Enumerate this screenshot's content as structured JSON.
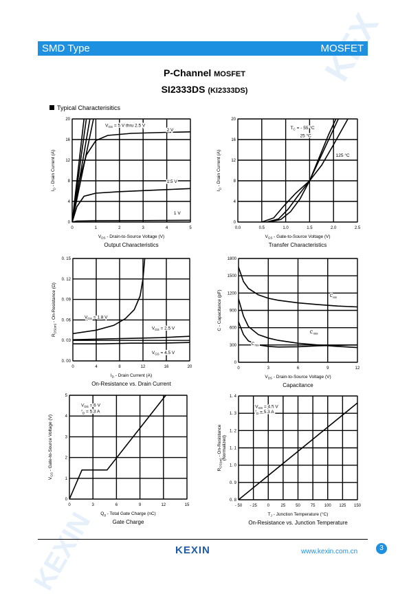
{
  "header": {
    "left": "SMD Type",
    "right": "MOSFET"
  },
  "title": {
    "main": "P-Channel",
    "main_suffix": "MOSFET",
    "part": "SI2333DS",
    "part_alt": "(KI2333DS)"
  },
  "section": "Typical  Characterisitics",
  "colors": {
    "accent": "#1e90e0"
  },
  "footer": {
    "logo": "KEXIN",
    "website": "www.kexin.com.cn",
    "page": "3"
  },
  "chart_data": [
    {
      "id": "c1",
      "type": "line",
      "caption": "Output Characteristics",
      "xlim": [
        0,
        5
      ],
      "ylim": [
        0,
        20
      ],
      "xticks": [
        0,
        1,
        2,
        3,
        4,
        5
      ],
      "yticks": [
        0,
        4,
        8,
        12,
        16,
        20
      ],
      "xticklabels": [
        "0",
        "1",
        "2",
        "3",
        "4",
        "5"
      ],
      "yticklabels": [
        "0",
        "4",
        "8",
        "12",
        "16",
        "20"
      ],
      "xlabel": {
        "sym": "V",
        "sub": "DS",
        "text": " - Drain-to-Source Voltage (V)"
      },
      "ylabel": {
        "sym": "I",
        "sub": "D",
        "text": " - Drain Current (A)"
      },
      "series": [
        {
          "name": "V_GS = 5 V thru 2.5 V",
          "points": [
            [
              0,
              0
            ],
            [
              0.5,
              20
            ]
          ]
        },
        {
          "name": "",
          "points": [
            [
              0,
              0
            ],
            [
              0.6,
              20
            ]
          ]
        },
        {
          "name": "",
          "points": [
            [
              0,
              0
            ],
            [
              0.75,
              20
            ]
          ]
        },
        {
          "name": "",
          "points": [
            [
              0,
              0
            ],
            [
              0.9,
              20
            ]
          ]
        },
        {
          "name": "2 V",
          "points": [
            [
              0,
              0
            ],
            [
              0.3,
              8
            ],
            [
              0.6,
              13
            ],
            [
              1,
              15.8
            ],
            [
              1.5,
              16.8
            ],
            [
              2.5,
              17.2
            ],
            [
              4,
              17.4
            ],
            [
              5,
              17.5
            ]
          ]
        },
        {
          "name": "1.5 V",
          "points": [
            [
              0,
              0
            ],
            [
              0.2,
              3
            ],
            [
              0.5,
              5
            ],
            [
              1,
              5.6
            ],
            [
              2,
              5.9
            ],
            [
              3,
              6.1
            ],
            [
              4,
              6.3
            ],
            [
              5,
              6.5
            ]
          ]
        },
        {
          "name": "1 V",
          "points": [
            [
              0,
              0
            ],
            [
              0.2,
              0.2
            ],
            [
              1,
              0.25
            ],
            [
              3,
              0.3
            ],
            [
              5,
              0.35
            ]
          ]
        }
      ],
      "annotations": [
        {
          "text": "V",
          "sub": "GS",
          "rest": " = 5 V thru 2.5 V",
          "x": 1.4,
          "y": 18.5
        },
        {
          "text": "2 V",
          "x": 4,
          "y": 17.6
        },
        {
          "text": "1.5 V",
          "x": 4,
          "y": 7.6
        },
        {
          "text": "1 V",
          "x": 4.3,
          "y": 1.5
        }
      ]
    },
    {
      "id": "c2",
      "type": "line",
      "caption": "Transfer Characteristics",
      "xlim": [
        0,
        2.5
      ],
      "ylim": [
        0,
        20
      ],
      "xticks": [
        0,
        0.5,
        1,
        1.5,
        2,
        2.5
      ],
      "yticks": [
        0,
        4,
        8,
        12,
        16,
        20
      ],
      "xticklabels": [
        "0.0",
        "0.5",
        "1.0",
        "1.5",
        "2.0",
        "2.5"
      ],
      "yticklabels": [
        "0",
        "4",
        "8",
        "12",
        "16",
        "20"
      ],
      "xlabel": {
        "sym": "V",
        "sub": "GS",
        "text": " - Gate-to-Source Voltage (V)"
      },
      "ylabel": {
        "sym": "I",
        "sub": "D",
        "text": " - Drain Current (A)"
      },
      "series": [
        {
          "name": "T_C = -55 °C",
          "points": [
            [
              0.65,
              0
            ],
            [
              0.9,
              0.5
            ],
            [
              1.1,
              2
            ],
            [
              1.3,
              4.5
            ],
            [
              1.5,
              8
            ],
            [
              1.7,
              12.5
            ],
            [
              1.9,
              17
            ],
            [
              2.05,
              20
            ]
          ]
        },
        {
          "name": "25 °C",
          "points": [
            [
              0.6,
              0
            ],
            [
              0.85,
              0.6
            ],
            [
              1.05,
              2.5
            ],
            [
              1.25,
              5
            ],
            [
              1.5,
              8
            ],
            [
              1.7,
              12
            ],
            [
              1.9,
              16
            ],
            [
              2.1,
              20
            ]
          ]
        },
        {
          "name": "125 °C",
          "points": [
            [
              0.5,
              0
            ],
            [
              0.75,
              0.8
            ],
            [
              0.95,
              3
            ],
            [
              1.2,
              5.5
            ],
            [
              1.5,
              8
            ],
            [
              1.75,
              11
            ],
            [
              2,
              15
            ],
            [
              2.3,
              20
            ]
          ]
        }
      ],
      "annotations": [
        {
          "text": "T",
          "sub": "C",
          "rest": " = - 55 °C",
          "x": 1.1,
          "y": 18
        },
        {
          "text": "25 °C",
          "x": 1.3,
          "y": 16.5
        },
        {
          "text": "125 °C",
          "x": 2.05,
          "y": 12.7
        }
      ]
    },
    {
      "id": "c3",
      "type": "line",
      "caption": "On-Resistance vs. Drain Current",
      "xlim": [
        0,
        20
      ],
      "ylim": [
        0,
        0.15
      ],
      "xticks": [
        0,
        4,
        8,
        12,
        16,
        20
      ],
      "yticks": [
        0,
        0.03,
        0.06,
        0.09,
        0.12,
        0.15
      ],
      "xticklabels": [
        "0",
        "4",
        "8",
        "12",
        "16",
        "20"
      ],
      "yticklabels": [
        "0. 00",
        "0. 03",
        "0. 06",
        "0. 09",
        "0. 12",
        "0. 15"
      ],
      "xlabel": {
        "sym": "I",
        "sub": "D",
        "text": " - Drain Current (A)"
      },
      "ylabel": {
        "sym": "R",
        "sub": "DS(on)",
        "text": " - On-Resistance (Ω)"
      },
      "series": [
        {
          "name": "V_GS = 1.8 V",
          "points": [
            [
              0,
              0.04
            ],
            [
              4,
              0.045
            ],
            [
              7,
              0.052
            ],
            [
              9,
              0.062
            ],
            [
              10.5,
              0.075
            ],
            [
              11.5,
              0.095
            ],
            [
              12,
              0.12
            ],
            [
              12.3,
              0.15
            ]
          ]
        },
        {
          "name": "V_GS = 2.5 V",
          "points": [
            [
              0,
              0.031
            ],
            [
              5,
              0.032
            ],
            [
              10,
              0.033
            ],
            [
              15,
              0.034
            ],
            [
              20,
              0.036
            ]
          ]
        },
        {
          "name": "V_GS = 4.5 V",
          "points": [
            [
              0,
              0.025
            ],
            [
              5,
              0.025
            ],
            [
              10,
              0.026
            ],
            [
              15,
              0.026
            ],
            [
              20,
              0.027
            ]
          ]
        }
      ],
      "annotations": [
        {
          "text": "V",
          "sub": "GS",
          "rest": " = 1.8 V",
          "x": 2,
          "y": 0.062
        },
        {
          "text": "V",
          "sub": "GS",
          "rest": " = 2.5 V",
          "x": 13.5,
          "y": 0.046
        },
        {
          "text": "V",
          "sub": "GS",
          "rest": " = 4.5 V",
          "x": 13.5,
          "y": 0.01
        }
      ]
    },
    {
      "id": "c4",
      "type": "line",
      "caption": "Capacitance",
      "xlim": [
        0,
        12
      ],
      "ylim": [
        0,
        1800
      ],
      "xticks": [
        0,
        3,
        6,
        9,
        12
      ],
      "yticks": [
        0,
        300,
        600,
        900,
        1200,
        1500,
        1800
      ],
      "xticklabels": [
        "0",
        "3",
        "6",
        "9",
        "12"
      ],
      "yticklabels": [
        "0",
        "300",
        "600",
        "900",
        "1200",
        "1500",
        "1800"
      ],
      "xlabel": {
        "sym": "V",
        "sub": "DS",
        "text": " - Drain-to-Source Voltage (V)"
      },
      "ylabel": {
        "sym": "C",
        "sub": "",
        "text": " - Capacitance (pF)"
      },
      "series": [
        {
          "name": "C_iss",
          "points": [
            [
              0,
              1650
            ],
            [
              0.5,
              1400
            ],
            [
              1,
              1280
            ],
            [
              2,
              1170
            ],
            [
              3,
              1110
            ],
            [
              4,
              1075
            ],
            [
              6,
              1030
            ],
            [
              8,
              1000
            ],
            [
              10,
              975
            ],
            [
              12,
              960
            ]
          ]
        },
        {
          "name": "C_oss",
          "points": [
            [
              0,
              1100
            ],
            [
              0.5,
              800
            ],
            [
              1,
              620
            ],
            [
              2,
              480
            ],
            [
              3,
              420
            ],
            [
              4,
              380
            ],
            [
              6,
              330
            ],
            [
              8,
              300
            ],
            [
              10,
              275
            ],
            [
              12,
              255
            ]
          ]
        },
        {
          "name": "C_rss",
          "points": [
            [
              0,
              700
            ],
            [
              0.5,
              480
            ],
            [
              1,
              370
            ],
            [
              2,
              300
            ],
            [
              3,
              275
            ],
            [
              4,
              265
            ],
            [
              6,
              270
            ],
            [
              8,
              285
            ],
            [
              10,
              295
            ],
            [
              12,
              300
            ]
          ]
        }
      ],
      "annotations": [
        {
          "text": "C",
          "sub": "iss",
          "rest": "",
          "x": 9.2,
          "y": 1130
        },
        {
          "text": "C",
          "sub": "oss",
          "rest": "",
          "x": 7.2,
          "y": 500
        },
        {
          "text": "C",
          "sub": "rss",
          "rest": "",
          "x": 1.3,
          "y": 300
        }
      ]
    },
    {
      "id": "c5",
      "type": "line",
      "caption": "Gate Charge",
      "xlim": [
        0,
        15
      ],
      "ylim": [
        0,
        5
      ],
      "xticks": [
        0,
        3,
        6,
        9,
        12,
        15
      ],
      "yticks": [
        0,
        1,
        2,
        3,
        4,
        5
      ],
      "xticklabels": [
        "0",
        "3",
        "6",
        "9",
        "12",
        "15"
      ],
      "yticklabels": [
        "0",
        "1",
        "2",
        "3",
        "4",
        "5"
      ],
      "xlabel": {
        "sym": "Q",
        "sub": "g",
        "text": " - Total Gate Charge (nC)"
      },
      "ylabel": {
        "sym": "V",
        "sub": "GS",
        "text": " - Gate-to-Source Voltage (V)"
      },
      "series": [
        {
          "name": "",
          "points": [
            [
              0,
              0
            ],
            [
              1.6,
              1.4
            ],
            [
              4.8,
              1.4
            ],
            [
              12.3,
              5
            ]
          ]
        }
      ],
      "annotations": [
        {
          "text": "V",
          "sub": "DS",
          "rest": " = 6 V",
          "x": 1.5,
          "y": 4.45
        },
        {
          "text": "I",
          "sub": "D",
          "rest": " = 5.3 A",
          "x": 1.5,
          "y": 4.15
        }
      ]
    },
    {
      "id": "c6",
      "type": "line",
      "caption": "On-Resistance vs. Junction Temperature",
      "xlim": [
        -50,
        150
      ],
      "ylim": [
        0.8,
        1.4
      ],
      "xticks": [
        -50,
        -25,
        0,
        25,
        50,
        75,
        100,
        125,
        150
      ],
      "yticks": [
        0.8,
        0.9,
        1.0,
        1.1,
        1.2,
        1.3,
        1.4
      ],
      "xticklabels": [
        "- 50",
        "- 25",
        "0",
        "25",
        "50",
        "75",
        "100",
        "125",
        "150"
      ],
      "yticklabels": [
        "0. 8",
        "0. 9",
        "1. 0",
        "1. 1",
        "1. 2",
        "1. 3",
        "1. 4"
      ],
      "xlabel": {
        "sym": "T",
        "sub": "J",
        "text": " - Junction Temperature (°C)"
      },
      "ylabel": {
        "sym": "R",
        "sub": "DS(on)",
        "text": " - On-Resistance",
        "extra": "(Normalized)"
      },
      "series": [
        {
          "name": "",
          "points": [
            [
              -50,
              0.8
            ],
            [
              150,
              1.36
            ]
          ]
        }
      ],
      "annotations": [
        {
          "text": "V",
          "sub": "GS",
          "rest": " = 4.5 V",
          "x": -22,
          "y": 1.33
        },
        {
          "text": "I",
          "sub": "D",
          "rest": " = 5.3 A",
          "x": -22,
          "y": 1.3
        }
      ]
    }
  ]
}
